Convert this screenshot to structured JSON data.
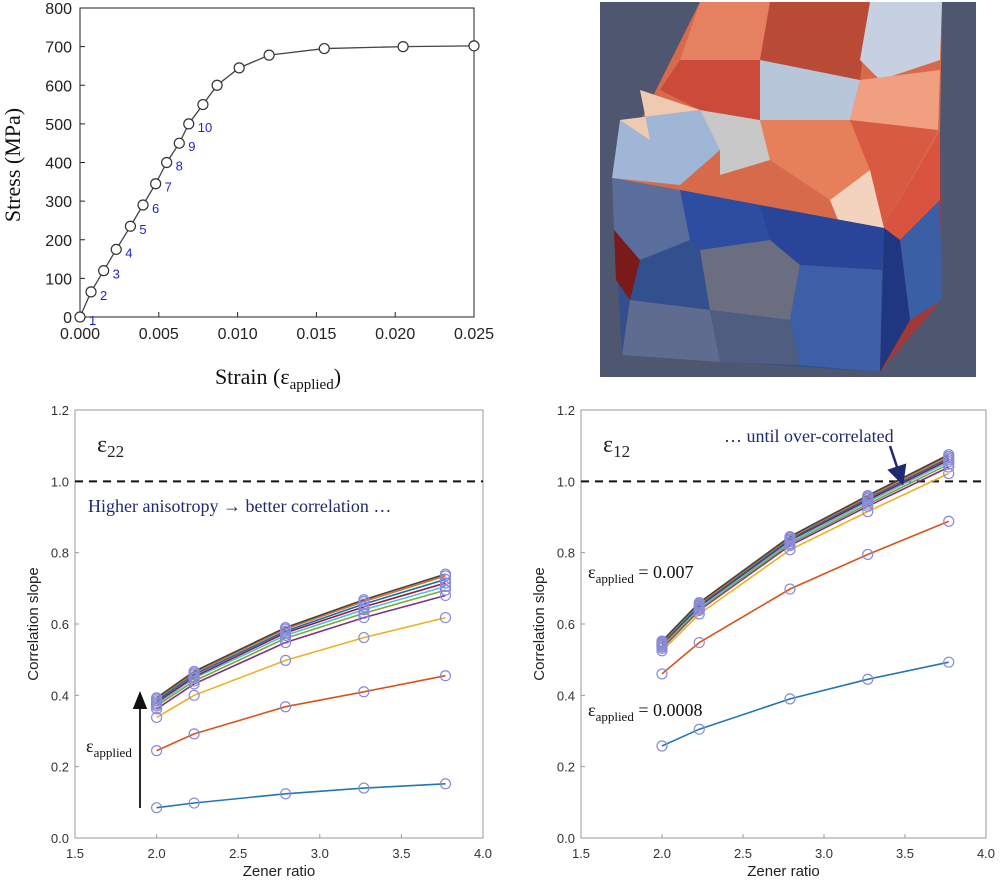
{
  "colors": {
    "stress_line": "#444444",
    "point_label": "#1f1fd0",
    "annotation": "#1f2a6e",
    "marker": "#8a8ad8",
    "series": [
      "#1f77b4",
      "#d95319",
      "#edb120",
      "#7e2f8e",
      "#77ac30",
      "#4dbeee",
      "#a2142f",
      "#0072bd",
      "#e07020",
      "#444444"
    ]
  },
  "render": {
    "title": "3D polycrystalline grain structure render"
  },
  "chart_data": [
    {
      "type": "line",
      "id": "stress_strain",
      "title": "",
      "xlabel": "Strain (ε",
      "xlabel_sub": "applied",
      "xlabel_tail": ")",
      "ylabel": "Stress (MPa)",
      "xlim": [
        0,
        0.025
      ],
      "ylim": [
        0,
        800
      ],
      "xticks": [
        0.0,
        0.005,
        0.01,
        0.015,
        0.02,
        0.025
      ],
      "xtick_labels": [
        "0.000",
        "0.005",
        "0.010",
        "0.015",
        "0.020",
        "0.025"
      ],
      "yticks": [
        0,
        100,
        200,
        300,
        400,
        500,
        600,
        700,
        800
      ],
      "ytick_labels": [
        "0",
        "100",
        "200",
        "300",
        "400",
        "500",
        "600",
        "700",
        "800"
      ],
      "x": [
        0.0,
        0.0007,
        0.0015,
        0.0023,
        0.0032,
        0.004,
        0.0048,
        0.0055,
        0.0063,
        0.0069,
        0.0078,
        0.0087,
        0.0101,
        0.012,
        0.0155,
        0.0205,
        0.025
      ],
      "y": [
        0,
        65,
        120,
        175,
        235,
        290,
        345,
        400,
        450,
        500,
        550,
        600,
        645,
        678,
        695,
        700,
        702
      ],
      "point_labels": [
        {
          "index": 0,
          "text": "1"
        },
        {
          "index": 1,
          "text": "2"
        },
        {
          "index": 2,
          "text": "3"
        },
        {
          "index": 3,
          "text": "4"
        },
        {
          "index": 4,
          "text": "5"
        },
        {
          "index": 5,
          "text": "6"
        },
        {
          "index": 6,
          "text": "7"
        },
        {
          "index": 7,
          "text": "8"
        },
        {
          "index": 8,
          "text": "9"
        },
        {
          "index": 9,
          "text": "10"
        }
      ]
    },
    {
      "type": "line",
      "id": "e22",
      "panel_label": "ε",
      "panel_sub": "22",
      "xlabel": "Zener ratio",
      "ylabel": "Correlation slope",
      "xlim": [
        1.5,
        4.0
      ],
      "ylim": [
        0.0,
        1.2
      ],
      "xticks": [
        1.5,
        2.0,
        2.5,
        3.0,
        3.5,
        4.0
      ],
      "xtick_labels": [
        "1.5",
        "2.0",
        "2.5",
        "3.0",
        "3.5",
        "4.0"
      ],
      "yticks": [
        0.0,
        0.2,
        0.4,
        0.6,
        0.8,
        1.0,
        1.2
      ],
      "ytick_labels": [
        "0.0",
        "0.2",
        "0.4",
        "0.6",
        "0.8",
        "1.0",
        "1.2"
      ],
      "reference_line": 1.0,
      "annotation": "Higher anisotropy → better correlation …",
      "arrow_label": "ε",
      "arrow_label_sub": "applied",
      "x": [
        2.0,
        2.23,
        2.79,
        3.27,
        3.77
      ],
      "series": [
        {
          "name": "s1",
          "values": [
            0.085,
            0.098,
            0.124,
            0.14,
            0.152
          ]
        },
        {
          "name": "s2",
          "values": [
            0.245,
            0.292,
            0.368,
            0.41,
            0.455
          ]
        },
        {
          "name": "s3",
          "values": [
            0.338,
            0.4,
            0.498,
            0.562,
            0.618
          ]
        },
        {
          "name": "s4",
          "values": [
            0.362,
            0.432,
            0.548,
            0.618,
            0.68
          ]
        },
        {
          "name": "s5",
          "values": [
            0.37,
            0.44,
            0.56,
            0.63,
            0.695
          ]
        },
        {
          "name": "s6",
          "values": [
            0.375,
            0.448,
            0.568,
            0.64,
            0.705
          ]
        },
        {
          "name": "s7",
          "values": [
            0.38,
            0.452,
            0.575,
            0.648,
            0.715
          ]
        },
        {
          "name": "s8",
          "values": [
            0.385,
            0.458,
            0.58,
            0.656,
            0.725
          ]
        },
        {
          "name": "s9",
          "values": [
            0.39,
            0.463,
            0.586,
            0.663,
            0.735
          ]
        },
        {
          "name": "s10",
          "values": [
            0.393,
            0.467,
            0.59,
            0.668,
            0.74
          ]
        }
      ]
    },
    {
      "type": "line",
      "id": "e12",
      "panel_label": "ε",
      "panel_sub": "12",
      "xlabel": "Zener ratio",
      "ylabel": "Correlation slope",
      "xlim": [
        1.5,
        4.0
      ],
      "ylim": [
        0.0,
        1.2
      ],
      "xticks": [
        1.5,
        2.0,
        2.5,
        3.0,
        3.5,
        4.0
      ],
      "xtick_labels": [
        "1.5",
        "2.0",
        "2.5",
        "3.0",
        "3.5",
        "4.0"
      ],
      "yticks": [
        0.0,
        0.2,
        0.4,
        0.6,
        0.8,
        1.0,
        1.2
      ],
      "ytick_labels": [
        "0.0",
        "0.2",
        "0.4",
        "0.6",
        "0.8",
        "1.0",
        "1.2"
      ],
      "reference_line": 1.0,
      "annotation": "… until over-correlated",
      "label_high": {
        "prefix": "ε",
        "sub": "applied",
        "text": " = 0.007"
      },
      "label_low": {
        "prefix": "ε",
        "sub": "applied",
        "text": " = 0.0008"
      },
      "x": [
        2.0,
        2.23,
        2.79,
        3.27,
        3.77
      ],
      "series": [
        {
          "name": "s1",
          "values": [
            0.258,
            0.305,
            0.39,
            0.445,
            0.493
          ]
        },
        {
          "name": "s2",
          "values": [
            0.46,
            0.548,
            0.698,
            0.795,
            0.888
          ]
        },
        {
          "name": "s3",
          "values": [
            0.525,
            0.628,
            0.808,
            0.915,
            1.022
          ]
        },
        {
          "name": "s4",
          "values": [
            0.532,
            0.638,
            0.82,
            0.93,
            1.04
          ]
        },
        {
          "name": "s5",
          "values": [
            0.536,
            0.642,
            0.825,
            0.936,
            1.048
          ]
        },
        {
          "name": "s6",
          "values": [
            0.54,
            0.646,
            0.83,
            0.942,
            1.055
          ]
        },
        {
          "name": "s7",
          "values": [
            0.543,
            0.65,
            0.835,
            0.947,
            1.06
          ]
        },
        {
          "name": "s8",
          "values": [
            0.546,
            0.653,
            0.838,
            0.952,
            1.065
          ]
        },
        {
          "name": "s9",
          "values": [
            0.549,
            0.656,
            0.842,
            0.956,
            1.07
          ]
        },
        {
          "name": "s10",
          "values": [
            0.552,
            0.66,
            0.845,
            0.96,
            1.075
          ]
        }
      ]
    }
  ]
}
